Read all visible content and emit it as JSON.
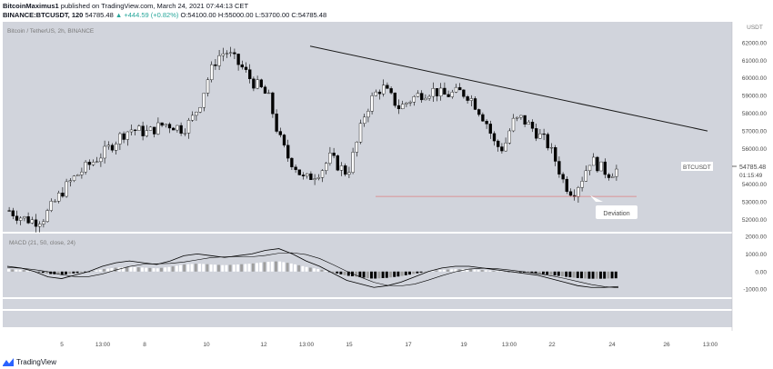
{
  "header": {
    "author": "BitcoinMaximus1",
    "published_text": "published on TradingView.com, March 24, 2021 07:44:13 CET",
    "symbol_line": "BINANCE:BTCUSDT, 120",
    "last": "54785.48",
    "change": "▲ +444.59 (+0.82%)",
    "o_label": "O:",
    "o": "54100.00",
    "h_label": "H:",
    "h": "55000.00",
    "l_label": "L:",
    "l": "53700.00",
    "c_label": "C:",
    "c": "54785.48"
  },
  "chart": {
    "legend": "Bitcoin / TetherUS, 2h, BINANCE",
    "watermark": "USDT",
    "price_tag": {
      "symbol": "BTCUSDT",
      "price": "54785.48",
      "countdown": "01:15:49",
      "price_value": 54785.48
    },
    "annotation": "Deviation",
    "y_ticks": [
      "62000.00",
      "61000.00",
      "60000.00",
      "59000.00",
      "58000.00",
      "57000.00",
      "56000.00",
      "55000.00",
      "54000.00",
      "53000.00",
      "52000.00"
    ],
    "x_ticks": [
      "5",
      "13:00",
      "8",
      "10",
      "12",
      "13:00",
      "15",
      "17",
      "19",
      "13:00",
      "22",
      "24",
      "26",
      "13:00"
    ],
    "colors": {
      "background": "#d1d4dc",
      "candle": "#000000",
      "trendline": "#1a1a1a",
      "support_line": "#e07f7f",
      "macd_line": "#000000",
      "hist_positive": "#ffffff",
      "hist_negative": "#000000",
      "hist_faded": "#9e9e9e"
    }
  },
  "macd": {
    "legend": "MACD (21, 50, close, 24)",
    "y_ticks": [
      "2000.00",
      "1000.00",
      "0.00",
      "-1000.00"
    ]
  },
  "footer": {
    "brand": "TradingView",
    "logo_icon": "tradingview-logo-icon"
  },
  "chart_data": {
    "type": "candlestick",
    "symbol": "BINANCE:BTCUSDT",
    "interval": "120",
    "y_range": [
      51300,
      62300
    ],
    "price_path_approx": [
      52500,
      52200,
      52000,
      51900,
      52100,
      52800,
      53500,
      54100,
      54600,
      55000,
      55400,
      55800,
      56300,
      56800,
      57100,
      57000,
      56900,
      57200,
      57400,
      57300,
      57100,
      57600,
      58600,
      60100,
      61200,
      61500,
      61000,
      60500,
      59800,
      59400,
      58800,
      56800,
      55600,
      55000,
      54200,
      54500,
      54800,
      55500,
      55000,
      54600,
      56200,
      58000,
      59000,
      59500,
      58900,
      58300,
      58700,
      59000,
      59200,
      59300,
      59000,
      59100,
      59200,
      59000,
      58300,
      57500,
      56200,
      56000,
      57500,
      57700,
      57300,
      56800,
      56300,
      55300,
      54000,
      53500,
      54300,
      55400,
      55000,
      54600,
      54800
    ],
    "trendline": {
      "from": {
        "date": "Mar 13 13:00",
        "price": 61800
      },
      "to": {
        "date": "Mar 27",
        "price": 57000
      }
    },
    "support_line": {
      "price": 53300
    },
    "macd_y_range": [
      -1300,
      2000
    ],
    "macd_line_approx": [
      300,
      200,
      0,
      -300,
      -400,
      -200,
      0,
      300,
      500,
      600,
      500,
      400,
      600,
      900,
      1000,
      900,
      800,
      900,
      1000,
      1200,
      1300,
      1000,
      600,
      300,
      -100,
      -500,
      -700,
      -900,
      -800,
      -600,
      -300,
      0,
      200,
      300,
      300,
      200,
      100,
      0,
      -100,
      -200,
      -400,
      -600,
      -800,
      -900,
      -900,
      -850
    ]
  }
}
